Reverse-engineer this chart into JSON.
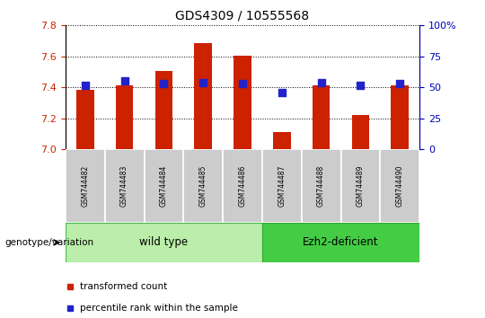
{
  "title": "GDS4309 / 10555568",
  "samples": [
    "GSM744482",
    "GSM744483",
    "GSM744484",
    "GSM744485",
    "GSM744486",
    "GSM744487",
    "GSM744488",
    "GSM744489",
    "GSM744490"
  ],
  "red_values": [
    7.385,
    7.415,
    7.505,
    7.685,
    7.605,
    7.11,
    7.415,
    7.225,
    7.415
  ],
  "blue_values": [
    52,
    55,
    53,
    54,
    53,
    46,
    54,
    52,
    53
  ],
  "ylim_left": [
    7.0,
    7.8
  ],
  "ylim_right": [
    0,
    100
  ],
  "yticks_left": [
    7.0,
    7.2,
    7.4,
    7.6,
    7.8
  ],
  "yticks_right": [
    0,
    25,
    50,
    75,
    100
  ],
  "yticklabels_right": [
    "0",
    "25",
    "50",
    "75",
    "100%"
  ],
  "bar_color": "#CC2200",
  "dot_color": "#2222CC",
  "wild_type_color_light": "#BBEEAA",
  "wild_type_color_dark": "#44BB44",
  "ezh2_color_light": "#44CC44",
  "ezh2_color_dark": "#33AA33",
  "sample_bg_color": "#CCCCCC",
  "sample_edge_color": "#FFFFFF",
  "wild_type_label": "wild type",
  "ezh2_label": "Ezh2-deficient",
  "genotype_label": "genotype/variation",
  "legend_red": "transformed count",
  "legend_blue": "percentile rank within the sample",
  "bar_width": 0.45,
  "dot_size": 28,
  "axis_left_color": "#CC2200",
  "axis_right_color": "#0000BB",
  "n_wild": 5,
  "n_ezh2": 4
}
